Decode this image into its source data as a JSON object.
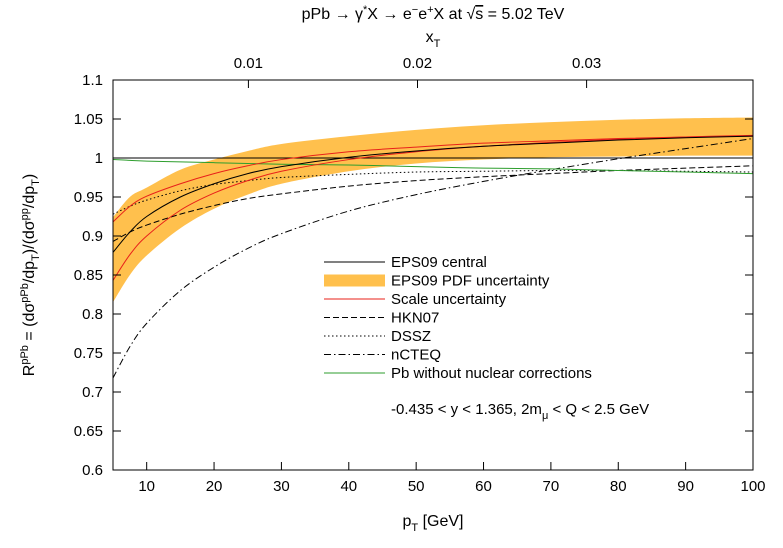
{
  "chart_data": {
    "type": "line",
    "title": "pPb → γ*X → e⁻e⁺X at √s = 5.02 TeV",
    "xlabel": "p_T [GeV]",
    "ylabel": "R^pPb = (dσ^pPb/dp_T)/(dσ^pp/dp_T)",
    "top_axis_label": "x_T",
    "xlim": [
      5,
      100
    ],
    "ylim": [
      0.6,
      1.1
    ],
    "x_ticks": [
      10,
      20,
      30,
      40,
      50,
      60,
      70,
      80,
      90,
      100
    ],
    "y_ticks": [
      0.6,
      0.65,
      0.7,
      0.75,
      0.8,
      0.85,
      0.9,
      0.95,
      1,
      1.05,
      1.1
    ],
    "y_tick_labels": [
      "0.6",
      "0.65",
      "0.7",
      "0.75",
      "0.8",
      "0.85",
      "0.9",
      "0.95",
      "1",
      "1.05",
      "1.1"
    ],
    "top_ticks": [
      0.01,
      0.02,
      0.03
    ],
    "top_tick_labels": [
      "0.01",
      "0.02",
      "0.03"
    ],
    "sqrt_s_GeV": 5020,
    "reference_line_y": 1.0,
    "annotation": "-0.435 < y < 1.365,   2m_μ < Q < 2.5 GeV",
    "legend_position": "center",
    "colors": {
      "central": "#000000",
      "band": "#FFC04D",
      "scale": "#E8201A",
      "hkn": "#000000",
      "dssz": "#000000",
      "ncteq": "#000000",
      "pb": "#2E9E2E",
      "ref": "#000000"
    },
    "x": [
      5,
      7.5,
      10,
      15,
      20,
      25,
      30,
      40,
      50,
      60,
      70,
      80,
      90,
      100
    ],
    "series": [
      {
        "name": "EPS09 central",
        "key": "central",
        "style": "solid",
        "values": [
          0.879,
          0.905,
          0.925,
          0.95,
          0.967,
          0.98,
          0.989,
          1.001,
          1.009,
          1.015,
          1.019,
          1.023,
          1.026,
          1.028
        ]
      },
      {
        "name": "EPS09 PDF uncertainty",
        "key": "band",
        "style": "band",
        "lower": [
          0.815,
          0.85,
          0.875,
          0.91,
          0.935,
          0.953,
          0.967,
          0.983,
          0.993,
          0.998,
          1.001,
          1.002,
          1.003,
          1.003
        ],
        "upper": [
          0.924,
          0.95,
          0.962,
          0.985,
          0.998,
          1.009,
          1.018,
          1.028,
          1.036,
          1.042,
          1.046,
          1.049,
          1.051,
          1.052
        ]
      },
      {
        "name": "Scale uncertainty",
        "key": "scale",
        "style": "solid",
        "lines": [
          [
            0.918,
            0.938,
            0.951,
            0.967,
            0.98,
            0.99,
            0.998,
            1.008,
            1.014,
            1.019,
            1.022,
            1.025,
            1.027,
            1.028
          ],
          [
            0.843,
            0.876,
            0.9,
            0.933,
            0.955,
            0.971,
            0.983,
            0.998,
            1.008,
            1.015,
            1.02,
            1.024,
            1.027,
            1.029
          ]
        ]
      },
      {
        "name": "HKN07",
        "key": "hkn",
        "style": "dashed",
        "values": [
          0.893,
          0.905,
          0.914,
          0.928,
          0.939,
          0.948,
          0.954,
          0.964,
          0.971,
          0.976,
          0.98,
          0.984,
          0.987,
          0.99
        ]
      },
      {
        "name": "DSSZ",
        "key": "dssz",
        "style": "dotted",
        "values": [
          0.928,
          0.938,
          0.946,
          0.958,
          0.966,
          0.971,
          0.975,
          0.979,
          0.982,
          0.983,
          0.984,
          0.984,
          0.983,
          0.982
        ]
      },
      {
        "name": "nCTEQ",
        "key": "ncteq",
        "style": "dashdot",
        "values": [
          0.718,
          0.758,
          0.788,
          0.83,
          0.86,
          0.884,
          0.903,
          0.932,
          0.953,
          0.97,
          0.985,
          0.999,
          1.012,
          1.025
        ]
      },
      {
        "name": "Pb without nuclear corrections",
        "key": "pb",
        "style": "solid",
        "values": [
          0.998,
          0.997,
          0.996,
          0.995,
          0.994,
          0.993,
          0.992,
          0.991,
          0.989,
          0.987,
          0.986,
          0.984,
          0.982,
          0.98
        ]
      }
    ]
  }
}
